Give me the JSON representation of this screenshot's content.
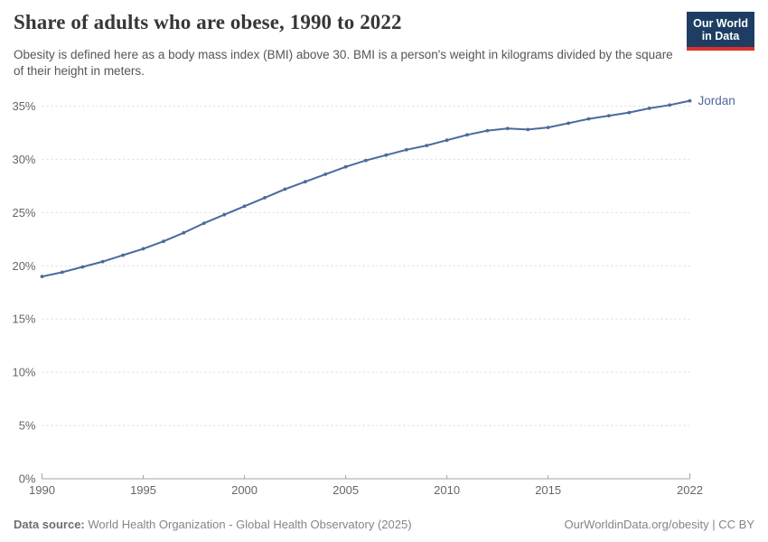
{
  "header": {
    "title": "Share of adults who are obese, 1990 to 2022",
    "subtitle": "Obesity is defined here as a body mass index (BMI) above 30. BMI is a person's weight in kilograms divided by the square of their height in meters."
  },
  "logo": {
    "line1": "Our World",
    "line2": "in Data",
    "bg_color": "#1d3d63",
    "accent_color": "#dc3129"
  },
  "footer": {
    "source_label": "Data source:",
    "source_text": "World Health Organization - Global Health Observatory (2025)",
    "rights": "OurWorldinData.org/obesity | CC BY"
  },
  "chart_data": {
    "type": "line",
    "title": "Share of adults who are obese, 1990 to 2022",
    "x": [
      1990,
      1991,
      1992,
      1993,
      1994,
      1995,
      1996,
      1997,
      1998,
      1999,
      2000,
      2001,
      2002,
      2003,
      2004,
      2005,
      2006,
      2007,
      2008,
      2009,
      2010,
      2011,
      2012,
      2013,
      2014,
      2015,
      2016,
      2017,
      2018,
      2019,
      2020,
      2021,
      2022
    ],
    "series": [
      {
        "name": "Jordan",
        "color": "#4C6A9C",
        "values": [
          19.0,
          19.4,
          19.9,
          20.4,
          21.0,
          21.6,
          22.3,
          23.1,
          24.0,
          24.8,
          25.6,
          26.4,
          27.2,
          27.9,
          28.6,
          29.3,
          29.9,
          30.4,
          30.9,
          31.3,
          31.8,
          32.3,
          32.7,
          32.9,
          32.8,
          33.0,
          33.4,
          33.8,
          34.1,
          34.4,
          34.8,
          35.1,
          35.5
        ]
      }
    ],
    "xlabel": "",
    "ylabel": "",
    "xlim": [
      1990,
      2022
    ],
    "ylim": [
      0,
      35
    ],
    "x_ticks": [
      1990,
      1995,
      2000,
      2005,
      2010,
      2015,
      2022
    ],
    "y_ticks": [
      0,
      5,
      10,
      15,
      20,
      25,
      30,
      35
    ],
    "y_tick_suffix": "%",
    "grid": "horizontal-dashed",
    "legend_position": "end-of-line-label",
    "gridline_color": "#dcdcdc",
    "axis_color": "#a3a3a3",
    "tick_label_color": "#666666"
  }
}
